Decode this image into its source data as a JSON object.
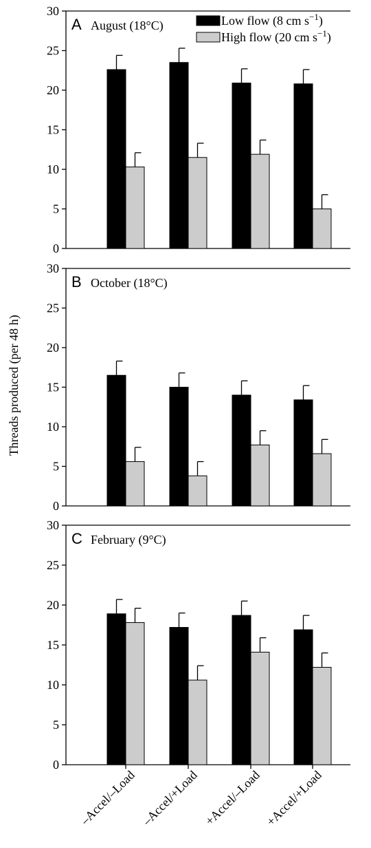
{
  "chart_data": {
    "type": "bar",
    "ylabel": "Threads produced (per 48 h)",
    "categories": [
      "–Accel/–Load",
      "–Accel/+Load",
      "+Accel/–Load",
      "+Accel/+Load"
    ],
    "ylim": [
      0,
      30
    ],
    "yticks": [
      0,
      5,
      10,
      15,
      20,
      25,
      30
    ],
    "legend": {
      "position": "top-right",
      "entries": [
        {
          "label": "Low flow (8 cm s",
          "superscript": "−1",
          "closing": ")",
          "color": "#000000"
        },
        {
          "label": "High flow (20 cm s",
          "superscript": "−1",
          "closing": ")",
          "color": "#cccccc"
        }
      ]
    },
    "panels": [
      {
        "letter": "A",
        "title": "August (18°C)",
        "series": [
          {
            "name": "Low flow",
            "values": [
              22.6,
              23.5,
              20.9,
              20.8
            ],
            "errors": [
              1.8,
              1.8,
              1.8,
              1.8
            ]
          },
          {
            "name": "High flow",
            "values": [
              10.3,
              11.5,
              11.9,
              5.0
            ],
            "errors": [
              1.8,
              1.8,
              1.8,
              1.8
            ]
          }
        ]
      },
      {
        "letter": "B",
        "title": "October (18°C)",
        "series": [
          {
            "name": "Low flow",
            "values": [
              16.5,
              15.0,
              14.0,
              13.4
            ],
            "errors": [
              1.8,
              1.8,
              1.8,
              1.8
            ]
          },
          {
            "name": "High flow",
            "values": [
              5.6,
              3.8,
              7.7,
              6.6
            ],
            "errors": [
              1.8,
              1.8,
              1.8,
              1.8
            ]
          }
        ]
      },
      {
        "letter": "C",
        "title": "February (9°C)",
        "series": [
          {
            "name": "Low flow",
            "values": [
              18.9,
              17.2,
              18.7,
              16.9
            ],
            "errors": [
              1.8,
              1.8,
              1.8,
              1.8
            ]
          },
          {
            "name": "High flow",
            "values": [
              17.8,
              10.6,
              14.1,
              12.2
            ],
            "errors": [
              1.8,
              1.8,
              1.8,
              1.8
            ]
          }
        ]
      }
    ],
    "colors": {
      "low": "#000000",
      "high": "#cccccc"
    }
  }
}
